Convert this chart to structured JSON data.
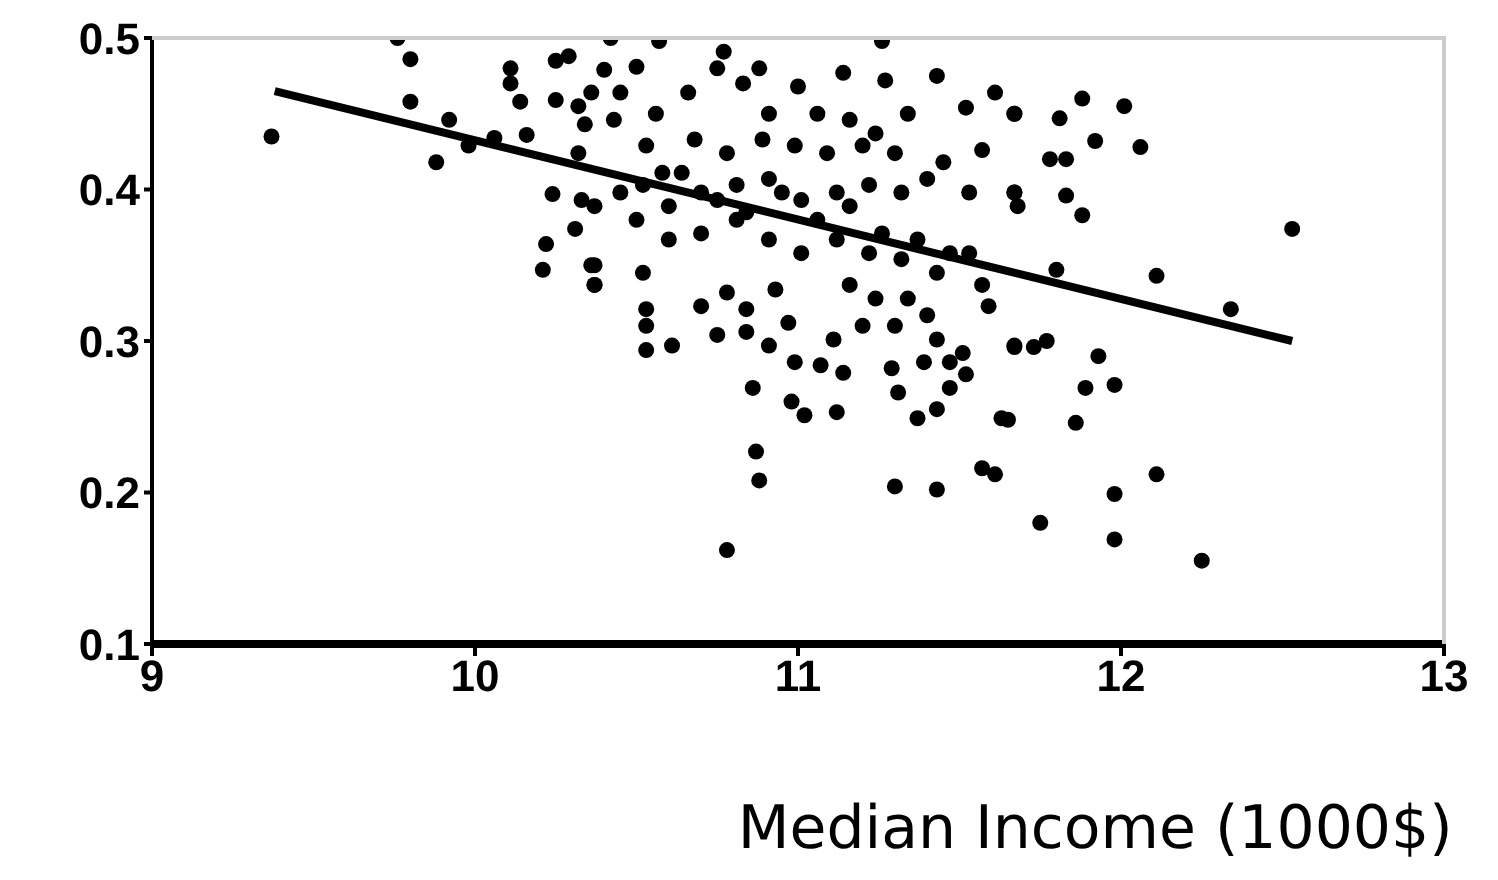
{
  "chart_data": {
    "type": "scatter",
    "xlabel": "Median Income (1000$)",
    "xlim": [
      9,
      13
    ],
    "xticks": [
      9,
      10,
      11,
      12,
      13
    ],
    "ylim": [
      0.1,
      0.5
    ],
    "yticks": [
      0.1,
      0.2,
      0.3,
      0.4,
      0.5
    ],
    "series": [
      {
        "marker": "circle",
        "color": "#000000",
        "x": [
          9.37,
          9.76,
          9.8,
          9.8,
          9.92,
          9.88,
          9.98,
          10.06,
          10.16,
          10.11,
          10.11,
          10.14,
          10.25,
          10.29,
          10.25,
          10.32,
          10.34,
          10.32,
          10.24,
          10.33,
          10.31,
          10.22,
          10.21,
          10.37,
          10.37,
          10.42,
          10.57,
          10.77,
          10.88,
          11.26,
          11.27,
          11.43,
          11.61,
          11.67,
          11.52,
          11.34,
          11.14,
          11.0,
          10.75,
          10.5,
          10.4,
          10.36,
          10.43,
          10.66,
          10.83,
          11.57,
          11.67,
          11.53,
          11.45,
          10.53,
          10.64,
          10.75,
          10.84,
          10.95,
          11.06,
          11.16,
          11.26,
          11.37,
          11.47,
          10.45,
          10.37,
          10.5,
          10.6,
          10.7,
          10.81,
          10.91,
          11.01,
          11.12,
          11.22,
          11.32,
          11.43,
          11.53,
          10.58,
          10.68,
          10.78,
          10.89,
          10.99,
          11.09,
          11.2,
          11.3,
          11.4,
          11.32,
          11.22,
          11.12,
          11.01,
          10.91,
          10.81,
          10.7,
          10.6,
          10.52,
          10.56,
          10.45,
          10.91,
          11.06,
          11.16,
          11.24,
          10.36,
          10.37,
          10.52,
          10.53,
          10.53,
          10.53,
          10.61,
          10.7,
          10.75,
          10.84,
          10.78,
          10.84,
          10.91,
          10.93,
          10.97,
          10.99,
          11.07,
          11.11,
          11.14,
          11.16,
          11.2,
          11.24,
          11.3,
          11.34,
          11.4,
          11.43,
          11.39,
          11.47,
          11.51,
          11.52,
          11.47,
          11.59,
          11.67,
          11.57,
          11.29,
          11.31,
          10.86,
          10.98,
          11.02,
          11.12,
          11.37,
          11.43,
          11.63,
          10.87,
          10.88,
          11.3,
          11.43,
          11.57,
          11.61,
          10.78,
          11.67,
          11.81,
          11.88,
          12.01,
          11.92,
          12.06,
          11.78,
          11.83,
          11.67,
          11.68,
          11.83,
          11.88,
          12.53,
          11.8,
          12.11,
          12.34,
          11.67,
          11.73,
          11.77,
          11.93,
          11.89,
          11.98,
          11.65,
          11.86,
          12.11,
          11.98,
          11.75,
          11.98,
          12.25
        ],
        "values": [
          0.435,
          0.5,
          0.486,
          0.458,
          0.446,
          0.418,
          0.429,
          0.434,
          0.436,
          0.48,
          0.47,
          0.458,
          0.485,
          0.488,
          0.459,
          0.455,
          0.443,
          0.424,
          0.397,
          0.393,
          0.374,
          0.364,
          0.347,
          0.35,
          0.337,
          0.5,
          0.498,
          0.491,
          0.48,
          0.498,
          0.472,
          0.475,
          0.464,
          0.45,
          0.454,
          0.45,
          0.477,
          0.468,
          0.48,
          0.481,
          0.479,
          0.464,
          0.446,
          0.464,
          0.47,
          0.426,
          0.398,
          0.398,
          0.418,
          0.429,
          0.411,
          0.393,
          0.385,
          0.398,
          0.38,
          0.389,
          0.371,
          0.367,
          0.358,
          0.398,
          0.389,
          0.38,
          0.367,
          0.371,
          0.38,
          0.367,
          0.358,
          0.367,
          0.358,
          0.354,
          0.345,
          0.358,
          0.411,
          0.433,
          0.424,
          0.433,
          0.429,
          0.424,
          0.429,
          0.424,
          0.407,
          0.398,
          0.403,
          0.398,
          0.393,
          0.407,
          0.403,
          0.398,
          0.389,
          0.403,
          0.45,
          0.464,
          0.45,
          0.45,
          0.446,
          0.437,
          0.35,
          0.337,
          0.345,
          0.321,
          0.31,
          0.294,
          0.297,
          0.323,
          0.304,
          0.321,
          0.332,
          0.306,
          0.297,
          0.334,
          0.312,
          0.286,
          0.284,
          0.301,
          0.279,
          0.337,
          0.31,
          0.328,
          0.31,
          0.328,
          0.317,
          0.301,
          0.286,
          0.286,
          0.292,
          0.278,
          0.269,
          0.323,
          0.297,
          0.337,
          0.282,
          0.266,
          0.269,
          0.26,
          0.251,
          0.253,
          0.249,
          0.255,
          0.249,
          0.227,
          0.208,
          0.204,
          0.202,
          0.216,
          0.212,
          0.162,
          0.45,
          0.447,
          0.46,
          0.455,
          0.432,
          0.428,
          0.42,
          0.42,
          0.398,
          0.389,
          0.396,
          0.383,
          0.374,
          0.347,
          0.343,
          0.321,
          0.296,
          0.296,
          0.3,
          0.29,
          0.269,
          0.271,
          0.248,
          0.246,
          0.212,
          0.199,
          0.18,
          0.169,
          0.155
        ]
      },
      {
        "type": "line",
        "color": "#000000",
        "x": [
          9.38,
          12.53
        ],
        "values": [
          0.465,
          0.3
        ]
      }
    ]
  }
}
